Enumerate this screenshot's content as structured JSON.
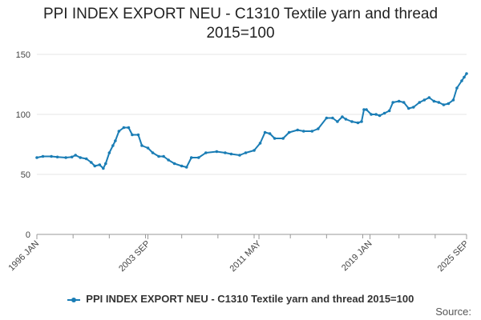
{
  "chart_data": {
    "type": "line",
    "title_line1": "PPI INDEX EXPORT NEU - C1310 Textile yarn and thread",
    "title_line2": "2015=100",
    "xlabel": "",
    "ylabel": "",
    "ylim": [
      0,
      150
    ],
    "yticks": [
      0,
      50,
      100,
      150
    ],
    "xlim": [
      "1996-01",
      "2025-09"
    ],
    "xtick_labels": [
      "1996 JAN",
      "2003 SEP",
      "2011 MAY",
      "2019 JAN",
      "2025 SEP"
    ],
    "xtick_dates": [
      "1996-01",
      "2003-09",
      "2011-05",
      "2019-01",
      "2025-09"
    ],
    "grid": true,
    "legend_position": "bottom",
    "series": [
      {
        "name": "PPI INDEX EXPORT NEU - C1310 Textile yarn and thread 2015=100",
        "color": "#1a7db5",
        "points": [
          [
            "1996-01",
            64
          ],
          [
            "1996-06",
            65
          ],
          [
            "1997-01",
            65
          ],
          [
            "1997-06",
            64.5
          ],
          [
            "1998-01",
            64
          ],
          [
            "1998-06",
            64.5
          ],
          [
            "1998-09",
            66
          ],
          [
            "1999-01",
            64
          ],
          [
            "1999-06",
            63
          ],
          [
            "1999-10",
            60
          ],
          [
            "2000-01",
            57
          ],
          [
            "2000-05",
            58
          ],
          [
            "2000-08",
            55
          ],
          [
            "2000-10",
            59
          ],
          [
            "2001-01",
            68
          ],
          [
            "2001-04",
            74
          ],
          [
            "2001-06",
            78
          ],
          [
            "2001-09",
            86
          ],
          [
            "2002-01",
            89
          ],
          [
            "2002-05",
            89
          ],
          [
            "2002-08",
            83
          ],
          [
            "2003-01",
            83
          ],
          [
            "2003-04",
            74
          ],
          [
            "2003-09",
            72
          ],
          [
            "2004-01",
            68
          ],
          [
            "2004-06",
            65
          ],
          [
            "2004-10",
            65
          ],
          [
            "2005-02",
            62
          ],
          [
            "2005-07",
            59
          ],
          [
            "2006-01",
            57
          ],
          [
            "2006-05",
            56
          ],
          [
            "2006-09",
            64
          ],
          [
            "2007-03",
            64
          ],
          [
            "2007-09",
            68
          ],
          [
            "2008-06",
            69
          ],
          [
            "2009-01",
            68
          ],
          [
            "2009-06",
            67
          ],
          [
            "2010-01",
            66
          ],
          [
            "2010-06",
            68
          ],
          [
            "2011-01",
            70
          ],
          [
            "2011-06",
            76
          ],
          [
            "2011-10",
            85
          ],
          [
            "2012-02",
            84
          ],
          [
            "2012-06",
            80
          ],
          [
            "2013-01",
            80
          ],
          [
            "2013-06",
            85
          ],
          [
            "2014-01",
            87
          ],
          [
            "2014-06",
            86
          ],
          [
            "2015-01",
            86
          ],
          [
            "2015-06",
            88
          ],
          [
            "2016-01",
            97
          ],
          [
            "2016-06",
            97
          ],
          [
            "2016-10",
            94
          ],
          [
            "2017-02",
            98
          ],
          [
            "2017-05",
            96
          ],
          [
            "2017-10",
            94
          ],
          [
            "2018-03",
            93
          ],
          [
            "2018-06",
            94
          ],
          [
            "2018-08",
            104
          ],
          [
            "2018-10",
            104
          ],
          [
            "2019-02",
            100
          ],
          [
            "2019-06",
            100
          ],
          [
            "2019-09",
            99
          ],
          [
            "2020-01",
            101
          ],
          [
            "2020-05",
            103
          ],
          [
            "2020-08",
            110
          ],
          [
            "2021-01",
            111
          ],
          [
            "2021-05",
            110
          ],
          [
            "2021-09",
            105
          ],
          [
            "2022-01",
            106
          ],
          [
            "2022-06",
            110
          ],
          [
            "2022-10",
            112
          ],
          [
            "2023-02",
            114
          ],
          [
            "2023-06",
            111
          ],
          [
            "2023-10",
            110
          ],
          [
            "2024-02",
            108
          ],
          [
            "2024-06",
            109
          ],
          [
            "2024-10",
            112
          ],
          [
            "2025-01",
            122
          ],
          [
            "2025-05",
            128
          ],
          [
            "2025-07",
            131
          ],
          [
            "2025-09",
            134
          ]
        ]
      }
    ]
  },
  "source_label": "Source:"
}
